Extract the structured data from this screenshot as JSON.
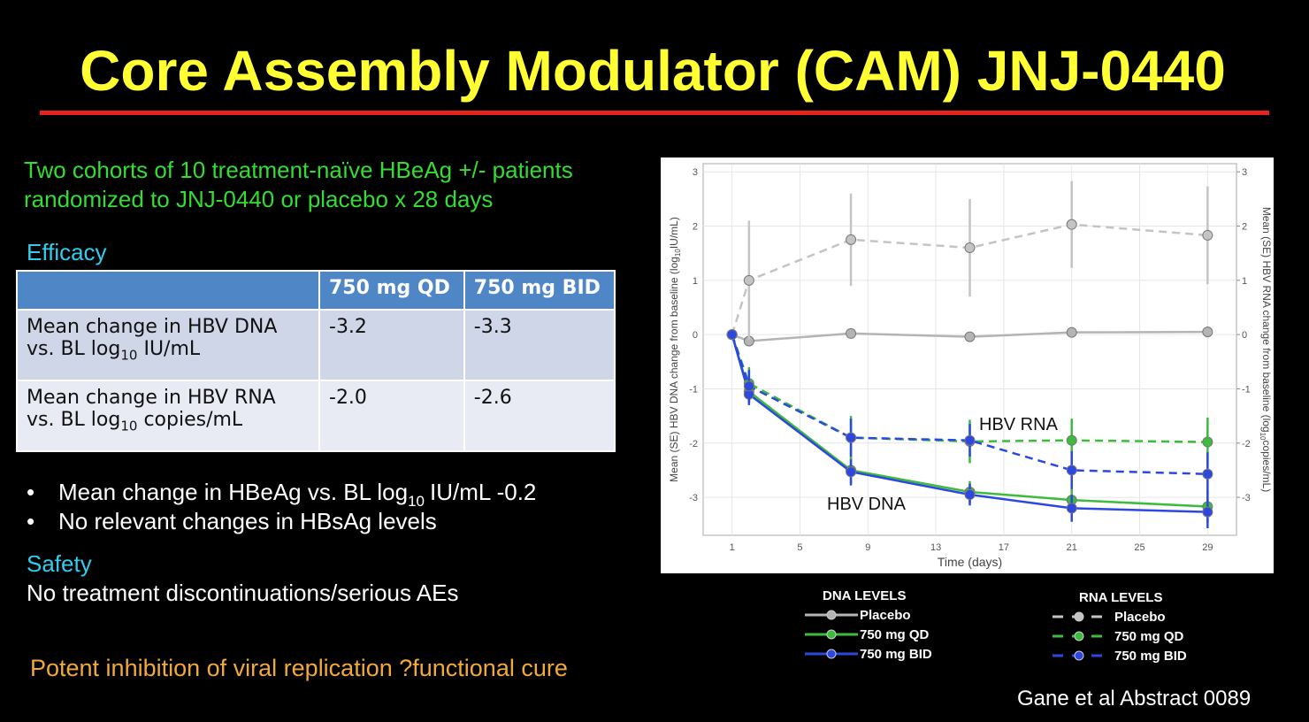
{
  "title": "Core Assembly Modulator (CAM) JNJ-0440",
  "intro": [
    "Two cohorts of 10 treatment-naïve HBeAg +/- patients",
    "randomized to JNJ-0440 or placebo x 28 days"
  ],
  "efficacy_heading": "Efficacy",
  "table": {
    "header": [
      "750 mg QD",
      "750 mg BID"
    ],
    "rows": [
      {
        "label": [
          "Mean change in HBV DNA",
          "vs. BL log",
          "10",
          "IU/mL"
        ],
        "cells": [
          "-3.2",
          "-3.3"
        ]
      },
      {
        "label": [
          "Mean change in HBV RNA",
          "vs. BL log",
          "10",
          "copies/mL"
        ],
        "cells": [
          "-2.0",
          "-2.6"
        ]
      }
    ]
  },
  "bullets": [
    [
      "Mean change in HBeAg vs. BL log",
      "10",
      "IU/mL -0.2"
    ],
    [
      "No relevant changes in HBsAg levels"
    ]
  ],
  "safety_heading": "Safety",
  "safety_text": "No treatment discontinuations/serious AEs",
  "conclusion": "Potent inhibition of viral replication ?functional cure",
  "citation": "Gane et al Abstract 0089",
  "chart_data": {
    "type": "line",
    "xlabel": "Time (days)",
    "ylabel": [
      "Mean (SE) HBV DNA change from baseline (log",
      "10",
      "IU/mL)"
    ],
    "y2label": [
      "Mean (SE) HBV RNA change from baseline (log",
      "10",
      "copies/mL)"
    ],
    "annotations": [
      "HBV RNA",
      "HBV DNA"
    ],
    "legend_titles": [
      "DNA LEVELS",
      "RNA LEVELS"
    ],
    "x": [
      1,
      2,
      8,
      15,
      21,
      29
    ],
    "xlim": [
      -0.7,
      30.7
    ],
    "xticks": [
      1,
      5,
      9,
      13,
      17,
      21,
      25,
      29
    ],
    "ylim": [
      -3.7,
      3.15
    ],
    "yticks": [
      -3,
      -2,
      -1,
      0,
      1,
      2,
      3
    ],
    "y2lim": [
      -3.7,
      3.15
    ],
    "y2ticks": [
      -3,
      -2,
      -1,
      0,
      1,
      2,
      3
    ],
    "grid": true,
    "series": [
      {
        "name": "Placebo",
        "color": "#b4b4b4",
        "linestyle": "solid",
        "values": [
          0,
          -0.12,
          0.02,
          -0.04,
          0.04,
          0.05
        ],
        "errors": [
          0,
          0.08,
          0.08,
          0.08,
          0.08,
          0.1
        ]
      },
      {
        "name": "750 mg QD",
        "color": "#3dbb3d",
        "linestyle": "solid",
        "values": [
          0,
          -1.05,
          -2.5,
          -2.9,
          -3.05,
          -3.17
        ],
        "errors": [
          0,
          0.2,
          0.25,
          0.2,
          0.25,
          0.3
        ]
      },
      {
        "name": "750 mg BID",
        "color": "#2c48e0",
        "linestyle": "solid",
        "values": [
          0,
          -1.1,
          -2.53,
          -2.95,
          -3.2,
          -3.27
        ],
        "errors": [
          0,
          0.2,
          0.25,
          0.2,
          0.25,
          0.3
        ]
      },
      {
        "name": "Placebo",
        "color": "#c4c4c4",
        "linestyle": "dashed",
        "axis": "y2",
        "values": [
          0,
          1.0,
          1.75,
          1.6,
          2.03,
          1.83
        ],
        "errors": [
          0,
          1.1,
          0.85,
          0.9,
          0.8,
          0.9
        ]
      },
      {
        "name": "750 mg QD",
        "color": "#3dbb3d",
        "linestyle": "dashed",
        "axis": "y2",
        "values": [
          0,
          -0.9,
          -1.9,
          -1.97,
          -1.95,
          -1.98
        ],
        "errors": [
          0,
          0.3,
          0.4,
          0.4,
          0.4,
          0.45
        ]
      },
      {
        "name": "750 mg BID",
        "color": "#2c48e0",
        "linestyle": "dashed",
        "axis": "y2",
        "values": [
          0,
          -0.95,
          -1.9,
          -1.95,
          -2.5,
          -2.57
        ],
        "errors": [
          0,
          0.3,
          0.35,
          0.3,
          0.35,
          0.4
        ]
      }
    ]
  }
}
